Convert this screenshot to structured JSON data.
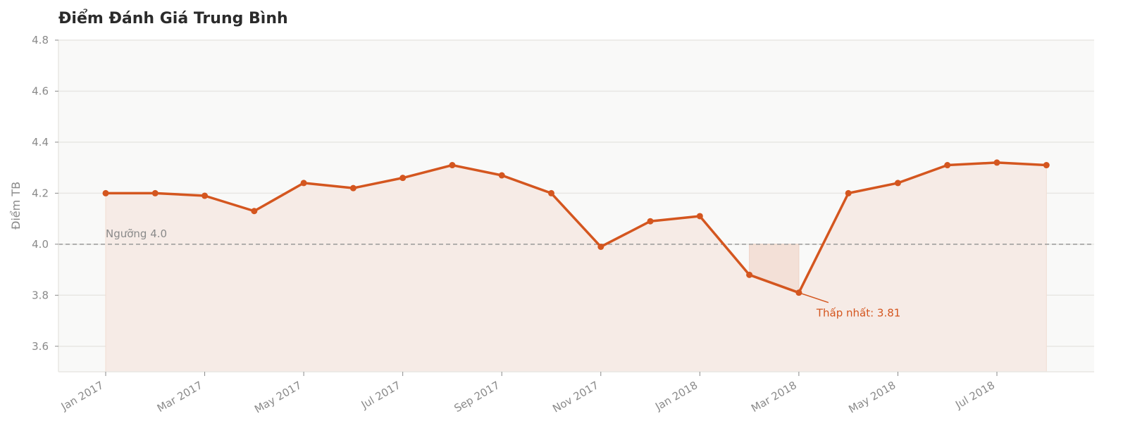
{
  "chart_data": {
    "type": "line",
    "title": "Điểm Đánh Giá Trung Bình",
    "xlabel": "",
    "ylabel": "Điểm TB",
    "ylim": [
      3.5,
      4.8
    ],
    "yticks": [
      3.6,
      3.8,
      4.0,
      4.2,
      4.4,
      4.6,
      4.8
    ],
    "ytick_labels": [
      "3.6",
      "3.8",
      "4.0",
      "4.2",
      "4.4",
      "4.6",
      "4.8"
    ],
    "xtick_labels": [
      "Jan 2017",
      "Mar 2017",
      "May 2017",
      "Jul 2017",
      "Sep 2017",
      "Nov 2017",
      "Jan 2018",
      "Mar 2018",
      "May 2018",
      "Jul 2018"
    ],
    "xtick_index": [
      0,
      2,
      4,
      6,
      8,
      10,
      12,
      14,
      16,
      18
    ],
    "grid": true,
    "legend": null,
    "x": [
      "2017-01",
      "2017-02",
      "2017-03",
      "2017-04",
      "2017-05",
      "2017-06",
      "2017-07",
      "2017-08",
      "2017-09",
      "2017-10",
      "2017-11",
      "2017-12",
      "2018-01",
      "2018-02",
      "2018-03",
      "2018-04",
      "2018-05",
      "2018-06",
      "2018-07",
      "2018-08"
    ],
    "series": [
      {
        "name": "Điểm TB",
        "color": "#d4561f",
        "values": [
          4.2,
          4.2,
          4.19,
          4.13,
          4.24,
          4.22,
          4.26,
          4.31,
          4.27,
          4.2,
          3.99,
          4.09,
          4.11,
          3.88,
          3.81,
          4.2,
          4.24,
          4.31,
          4.32,
          4.31
        ]
      }
    ],
    "threshold": {
      "value": 4.0,
      "label": "Ngưỡng 4.0",
      "style": "dashed",
      "color": "#999999"
    },
    "annotations": [
      {
        "text": "Thấp nhất: 3.81",
        "x": "2018-03",
        "y": 3.81,
        "color": "#d4561f"
      }
    ],
    "colors": {
      "line": "#d4561f",
      "area_fill": "#f6ebe6",
      "below_threshold_fill": "#f3e0d7",
      "plot_bg": "#f9f9f8",
      "grid": "#e8e7e3",
      "text_muted": "#8a8a8a",
      "title": "#2b2b2b"
    }
  }
}
